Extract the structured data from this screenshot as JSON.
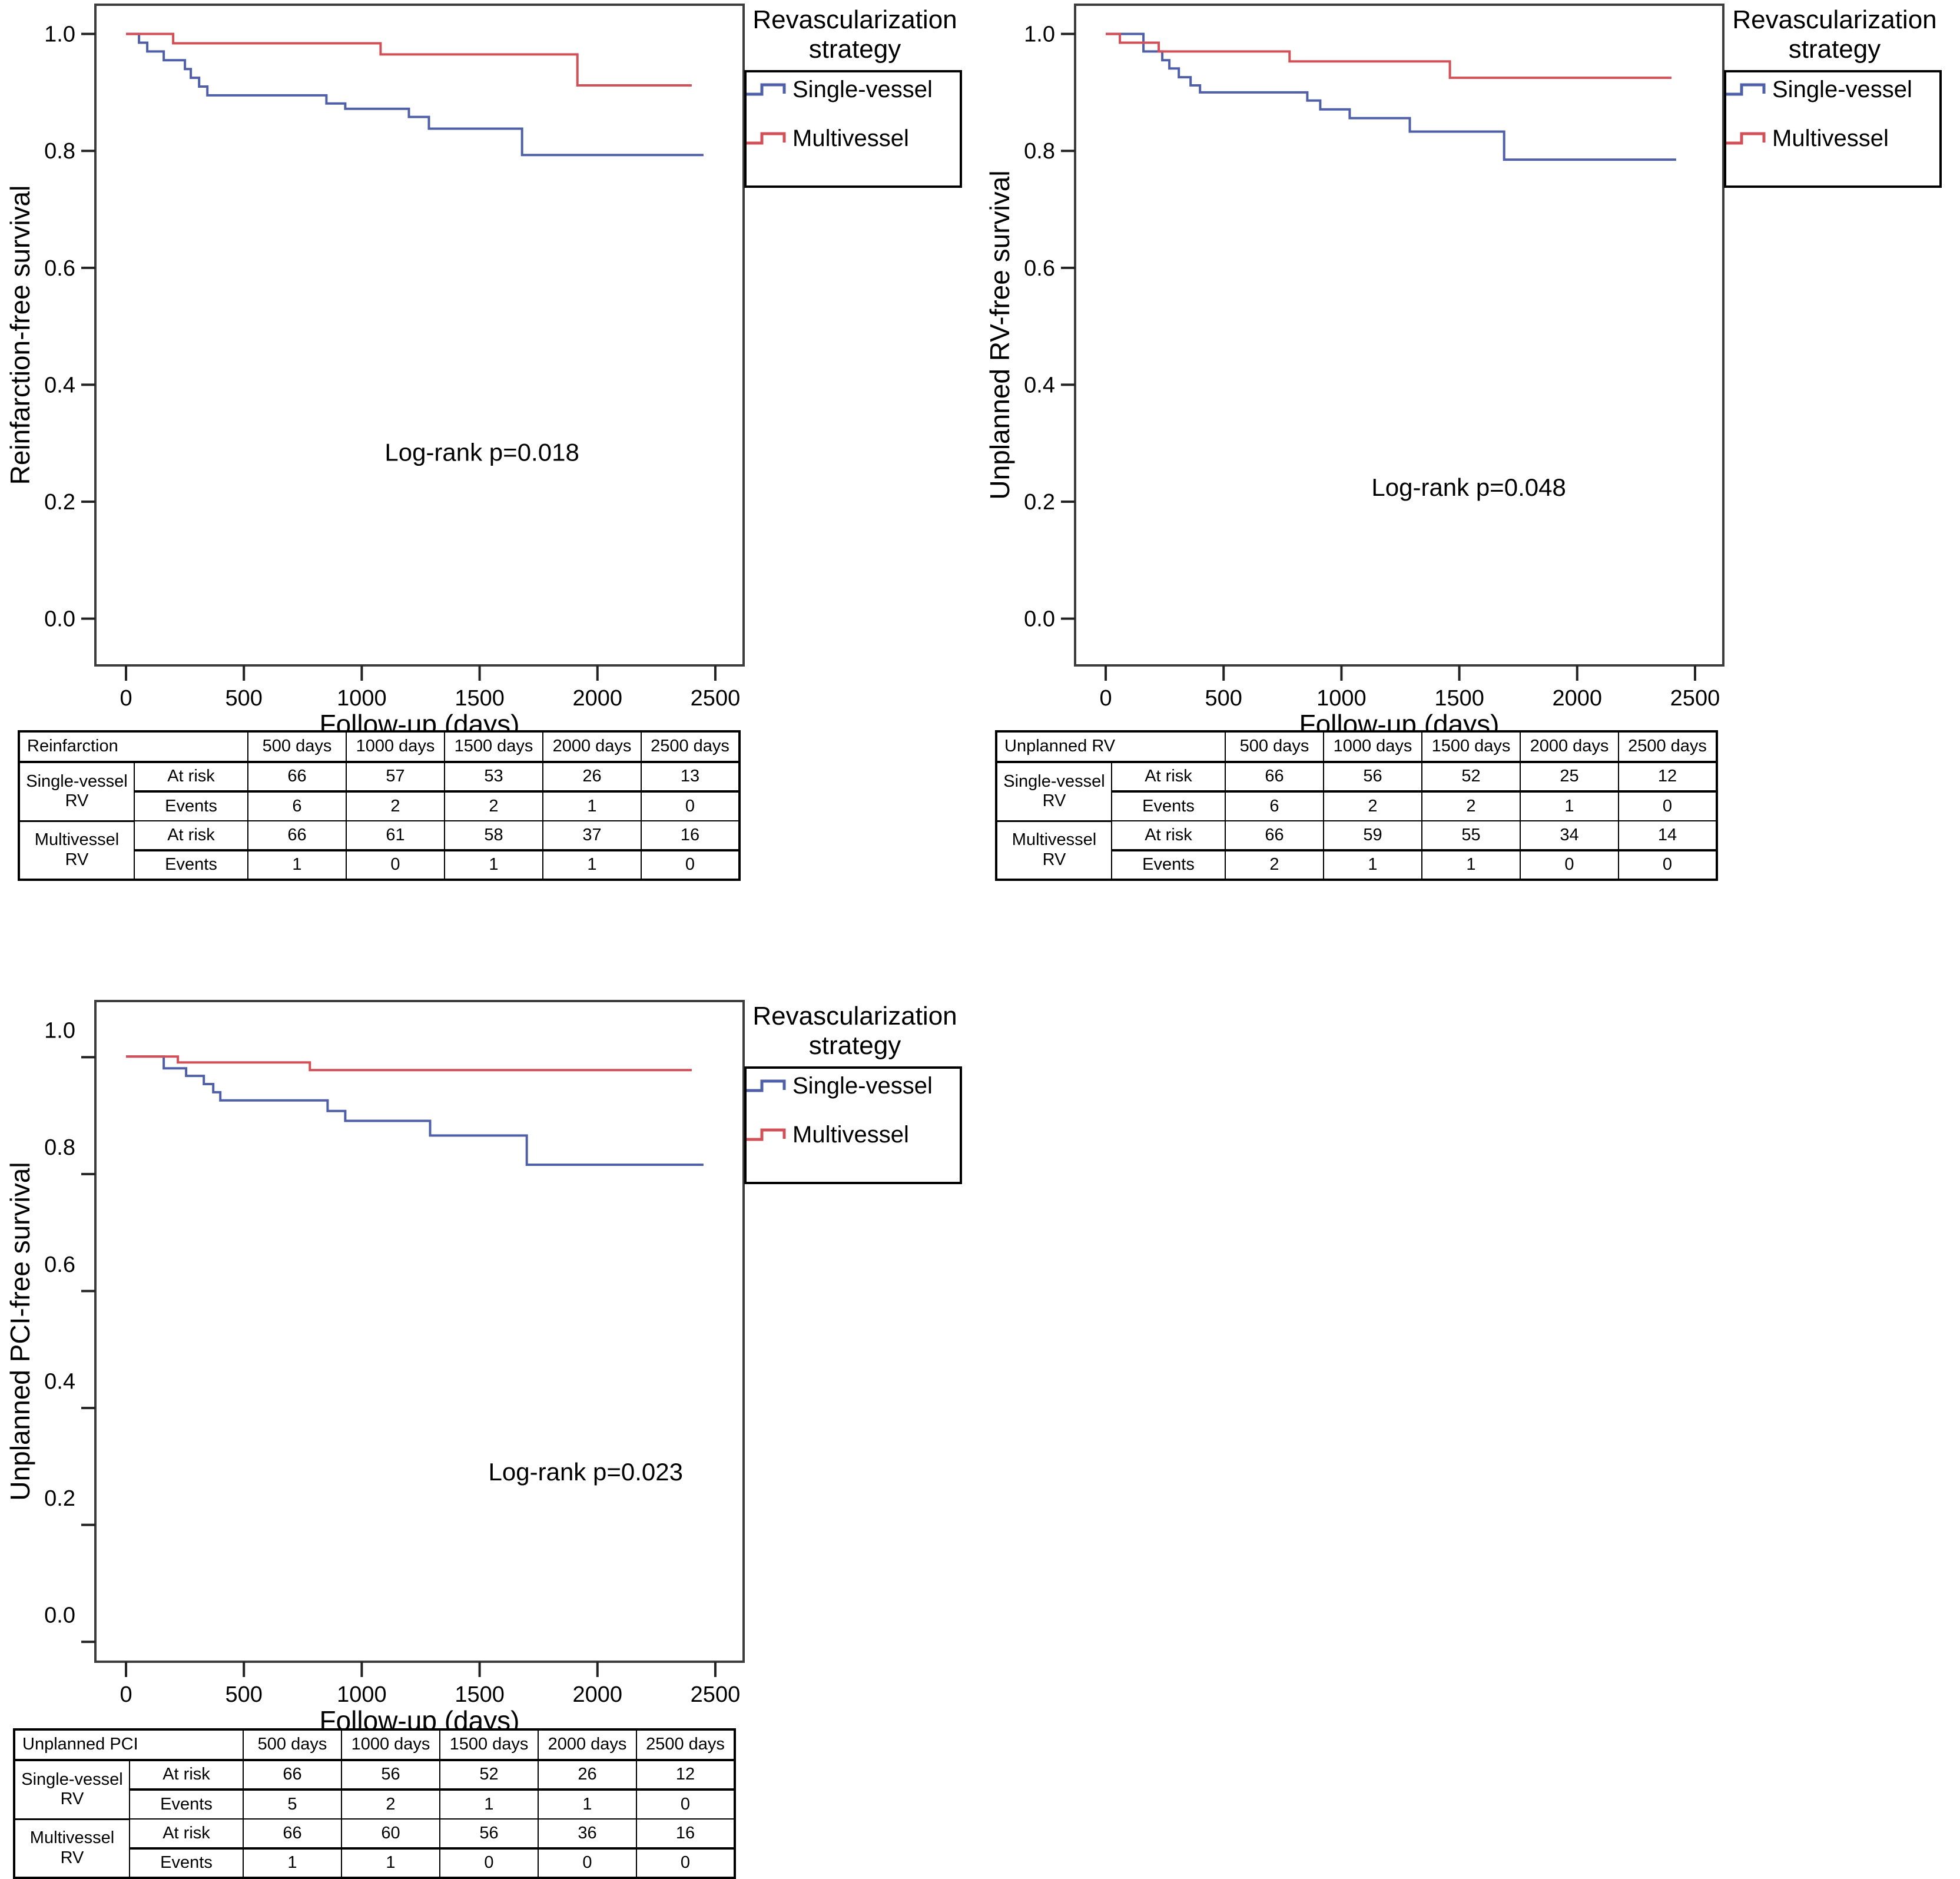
{
  "figure": {
    "background": "#ffffff",
    "frame_color": "#3d3d3d",
    "tick_color": "#222222",
    "legend": {
      "title_lines": [
        "Revascularization",
        "strategy"
      ],
      "items": [
        {
          "label": "Single-vessel",
          "series": "single-vessel"
        },
        {
          "label": "Multivessel",
          "series": "multivessel"
        }
      ]
    }
  },
  "chart_data": [
    {
      "type": "line",
      "step": true,
      "ylabel": "Reinfarction-free survival",
      "xlabel": "Follow-up (days)",
      "annotation": "Log-rank p=0.018",
      "annotation_at": {
        "x": 1510,
        "y": 0.27
      },
      "xlim": [
        -130,
        2620
      ],
      "ylim": [
        -0.08,
        1.05
      ],
      "x_ticks": [
        0,
        500,
        1000,
        1500,
        2000,
        2500
      ],
      "y_ticks": [
        "0.0",
        "0.2",
        "0.4",
        "0.6",
        "0.8",
        "1.0"
      ],
      "y_tick_shift": 0,
      "grid": false,
      "legend_position": "outside-top-right",
      "series": [
        {
          "name": "Single-vessel",
          "color": "#4f5fa8",
          "points": [
            [
              0,
              1.0
            ],
            [
              55,
              0.985
            ],
            [
              90,
              0.97
            ],
            [
              160,
              0.955
            ],
            [
              250,
              0.94
            ],
            [
              275,
              0.925
            ],
            [
              310,
              0.91
            ],
            [
              345,
              0.895
            ],
            [
              850,
              0.881
            ],
            [
              930,
              0.872
            ],
            [
              1200,
              0.858
            ],
            [
              1285,
              0.838
            ],
            [
              1680,
              0.793
            ],
            [
              2450,
              0.793
            ]
          ]
        },
        {
          "name": "Multivessel",
          "color": "#d25058",
          "points": [
            [
              0,
              1.0
            ],
            [
              200,
              0.984
            ],
            [
              1080,
              0.965
            ],
            [
              1915,
              0.912
            ],
            [
              2400,
              0.912
            ]
          ]
        }
      ],
      "risk_table": {
        "corner_label": "Reinfarction",
        "columns": [
          "500 days",
          "1000 days",
          "1500 days",
          "2000 days",
          "2500 days"
        ],
        "groups": [
          {
            "name": "Single-vessel RV",
            "rows": [
              {
                "label": "At risk",
                "values": [
                  "66",
                  "57",
                  "53",
                  "26",
                  "13"
                ]
              },
              {
                "label": "Events",
                "values": [
                  "6",
                  "2",
                  "2",
                  "1",
                  "0"
                ]
              }
            ]
          },
          {
            "name": "Multivessel RV",
            "rows": [
              {
                "label": "At risk",
                "values": [
                  "66",
                  "61",
                  "58",
                  "37",
                  "16"
                ]
              },
              {
                "label": "Events",
                "values": [
                  "1",
                  "0",
                  "1",
                  "1",
                  "0"
                ]
              }
            ]
          }
        ]
      }
    },
    {
      "type": "line",
      "step": true,
      "ylabel": "Unplanned RV-free survival",
      "xlabel": "Follow-up (days)",
      "annotation": "Log-rank p=0.048",
      "annotation_at": {
        "x": 1540,
        "y": 0.21
      },
      "xlim": [
        -130,
        2620
      ],
      "ylim": [
        -0.08,
        1.05
      ],
      "x_ticks": [
        0,
        500,
        1000,
        1500,
        2000,
        2500
      ],
      "y_ticks": [
        "0.0",
        "0.2",
        "0.4",
        "0.6",
        "0.8",
        "1.0"
      ],
      "y_tick_shift": 0,
      "grid": false,
      "legend_position": "outside-top-right",
      "series": [
        {
          "name": "Single-vessel",
          "color": "#4f5fa8",
          "points": [
            [
              0,
              1.0
            ],
            [
              160,
              0.97
            ],
            [
              240,
              0.955
            ],
            [
              270,
              0.941
            ],
            [
              310,
              0.926
            ],
            [
              360,
              0.912
            ],
            [
              400,
              0.9
            ],
            [
              855,
              0.886
            ],
            [
              910,
              0.871
            ],
            [
              1035,
              0.856
            ],
            [
              1290,
              0.833
            ],
            [
              1690,
              0.785
            ],
            [
              2420,
              0.785
            ]
          ]
        },
        {
          "name": "Multivessel",
          "color": "#d25058",
          "points": [
            [
              0,
              1.0
            ],
            [
              60,
              0.985
            ],
            [
              225,
              0.97
            ],
            [
              780,
              0.953
            ],
            [
              1460,
              0.925
            ],
            [
              2400,
              0.925
            ]
          ]
        }
      ],
      "risk_table": {
        "corner_label": "Unplanned RV",
        "columns": [
          "500 days",
          "1000 days",
          "1500 days",
          "2000 days",
          "2500 days"
        ],
        "groups": [
          {
            "name": "Single-vessel RV",
            "rows": [
              {
                "label": "At risk",
                "values": [
                  "66",
                  "56",
                  "52",
                  "25",
                  "12"
                ]
              },
              {
                "label": "Events",
                "values": [
                  "6",
                  "2",
                  "2",
                  "1",
                  "0"
                ]
              }
            ]
          },
          {
            "name": "Multivessel RV",
            "rows": [
              {
                "label": "At risk",
                "values": [
                  "66",
                  "59",
                  "55",
                  "34",
                  "14"
                ]
              },
              {
                "label": "Events",
                "values": [
                  "2",
                  "1",
                  "1",
                  "0",
                  "0"
                ]
              }
            ]
          }
        ]
      }
    },
    {
      "type": "line",
      "step": true,
      "ylabel": "Unplanned PCI-free survival",
      "xlabel": "Follow-up (days)",
      "annotation": "Log-rank p=0.023",
      "annotation_at": {
        "x": 1950,
        "y": 0.23
      },
      "xlim": [
        -130,
        2620
      ],
      "ylim": [
        -0.08,
        1.05
      ],
      "x_ticks": [
        0,
        500,
        1000,
        1500,
        2000,
        2500
      ],
      "y_ticks": [
        "0.0",
        "0.2",
        "0.4",
        "0.6",
        "0.8",
        "1.0"
      ],
      "y_tick_shift": 0.046,
      "grid": false,
      "legend_position": "outside-top-right",
      "series": [
        {
          "name": "Single-vessel",
          "color": "#4f5fa8",
          "points": [
            [
              0,
              0.955
            ],
            [
              160,
              0.935
            ],
            [
              255,
              0.922
            ],
            [
              330,
              0.908
            ],
            [
              370,
              0.894
            ],
            [
              400,
              0.88
            ],
            [
              855,
              0.862
            ],
            [
              930,
              0.845
            ],
            [
              1290,
              0.82
            ],
            [
              1700,
              0.77
            ],
            [
              2450,
              0.77
            ]
          ]
        },
        {
          "name": "Multivessel",
          "color": "#d25058",
          "points": [
            [
              0,
              0.955
            ],
            [
              220,
              0.945
            ],
            [
              780,
              0.932
            ],
            [
              2400,
              0.932
            ]
          ]
        }
      ],
      "risk_table": {
        "corner_label": "Unplanned PCI",
        "columns": [
          "500 days",
          "1000 days",
          "1500 days",
          "2000 days",
          "2500 days"
        ],
        "groups": [
          {
            "name": "Single-vessel RV",
            "rows": [
              {
                "label": "At risk",
                "values": [
                  "66",
                  "56",
                  "52",
                  "26",
                  "12"
                ]
              },
              {
                "label": "Events",
                "values": [
                  "5",
                  "2",
                  "1",
                  "1",
                  "0"
                ]
              }
            ]
          },
          {
            "name": "Multivessel RV",
            "rows": [
              {
                "label": "At risk",
                "values": [
                  "66",
                  "60",
                  "56",
                  "36",
                  "16"
                ]
              },
              {
                "label": "Events",
                "values": [
                  "1",
                  "1",
                  "0",
                  "0",
                  "0"
                ]
              }
            ]
          }
        ]
      }
    }
  ]
}
